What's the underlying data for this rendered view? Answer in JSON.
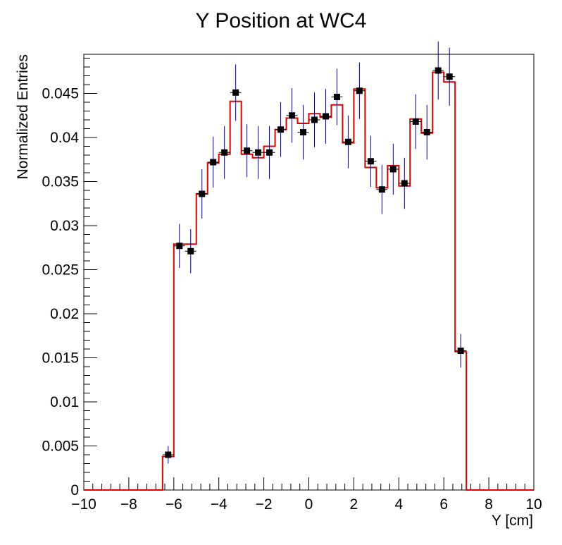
{
  "chart_data": {
    "type": "histogram",
    "title": "Y Position at WC4",
    "xlabel": "Y [cm]",
    "ylabel": "Normalized Entries",
    "xlim": [
      -10,
      10
    ],
    "ylim": [
      0,
      0.0495
    ],
    "grid": false,
    "x_tick_labels": [
      "−10",
      "−8",
      "−6",
      "−4",
      "−2",
      "0",
      "2",
      "4",
      "6",
      "8",
      "10"
    ],
    "y_tick_labels": [
      "0",
      "0.005",
      "0.01",
      "0.015",
      "0.02",
      "0.025",
      "0.03",
      "0.035",
      "0.04",
      "0.045"
    ],
    "bin_edges": [
      -10,
      -9.5,
      -9,
      -8.5,
      -8,
      -7.5,
      -7,
      -6.5,
      -6,
      -5.5,
      -5,
      -4.5,
      -4,
      -3.5,
      -3,
      -2.5,
      -2,
      -1.5,
      -1,
      -0.5,
      0,
      0.5,
      1,
      1.5,
      2,
      2.5,
      3,
      3.5,
      4,
      4.5,
      5,
      5.5,
      6,
      6.5,
      7,
      7.5,
      8,
      8.5,
      9,
      9.5,
      10
    ],
    "series": [
      {
        "kind": "step",
        "color": "#e00000",
        "values": [
          0,
          0,
          0,
          0,
          0,
          0,
          0,
          0.0038,
          0.0279,
          0.0279,
          0.0336,
          0.0371,
          0.0381,
          0.0441,
          0.0381,
          0.0377,
          0.039,
          0.0409,
          0.0422,
          0.0416,
          0.0427,
          0.0423,
          0.0437,
          0.0394,
          0.0455,
          0.0366,
          0.0343,
          0.0368,
          0.0345,
          0.0421,
          0.0405,
          0.0474,
          0.0463,
          0.0157,
          0,
          0,
          0,
          0,
          0,
          0
        ]
      },
      {
        "kind": "points",
        "color": "#000000",
        "error_color": "#000080",
        "points": [
          {
            "x": -6.25,
            "y": 0.004,
            "err": 0.001
          },
          {
            "x": -5.75,
            "y": 0.0277,
            "err": 0.0025
          },
          {
            "x": -5.25,
            "y": 0.0271,
            "err": 0.0025
          },
          {
            "x": -4.75,
            "y": 0.0336,
            "err": 0.0028
          },
          {
            "x": -4.25,
            "y": 0.0372,
            "err": 0.0029
          },
          {
            "x": -3.75,
            "y": 0.0383,
            "err": 0.003
          },
          {
            "x": -3.25,
            "y": 0.0451,
            "err": 0.0032
          },
          {
            "x": -2.75,
            "y": 0.0385,
            "err": 0.003
          },
          {
            "x": -2.25,
            "y": 0.0383,
            "err": 0.003
          },
          {
            "x": -1.75,
            "y": 0.0383,
            "err": 0.003
          },
          {
            "x": -1.25,
            "y": 0.0409,
            "err": 0.0031
          },
          {
            "x": -0.75,
            "y": 0.0425,
            "err": 0.0031
          },
          {
            "x": -0.25,
            "y": 0.0406,
            "err": 0.0031
          },
          {
            "x": 0.25,
            "y": 0.042,
            "err": 0.0031
          },
          {
            "x": 0.75,
            "y": 0.0424,
            "err": 0.0031
          },
          {
            "x": 1.25,
            "y": 0.0446,
            "err": 0.0032
          },
          {
            "x": 1.75,
            "y": 0.0395,
            "err": 0.003
          },
          {
            "x": 2.25,
            "y": 0.0453,
            "err": 0.0032
          },
          {
            "x": 2.75,
            "y": 0.0373,
            "err": 0.0029
          },
          {
            "x": 3.25,
            "y": 0.0341,
            "err": 0.0028
          },
          {
            "x": 3.75,
            "y": 0.0364,
            "err": 0.0029
          },
          {
            "x": 4.25,
            "y": 0.0348,
            "err": 0.0029
          },
          {
            "x": 4.75,
            "y": 0.0418,
            "err": 0.0031
          },
          {
            "x": 5.25,
            "y": 0.0406,
            "err": 0.0031
          },
          {
            "x": 5.75,
            "y": 0.0476,
            "err": 0.0033
          },
          {
            "x": 6.25,
            "y": 0.0469,
            "err": 0.0033
          },
          {
            "x": 6.75,
            "y": 0.0158,
            "err": 0.0019
          }
        ]
      }
    ]
  }
}
